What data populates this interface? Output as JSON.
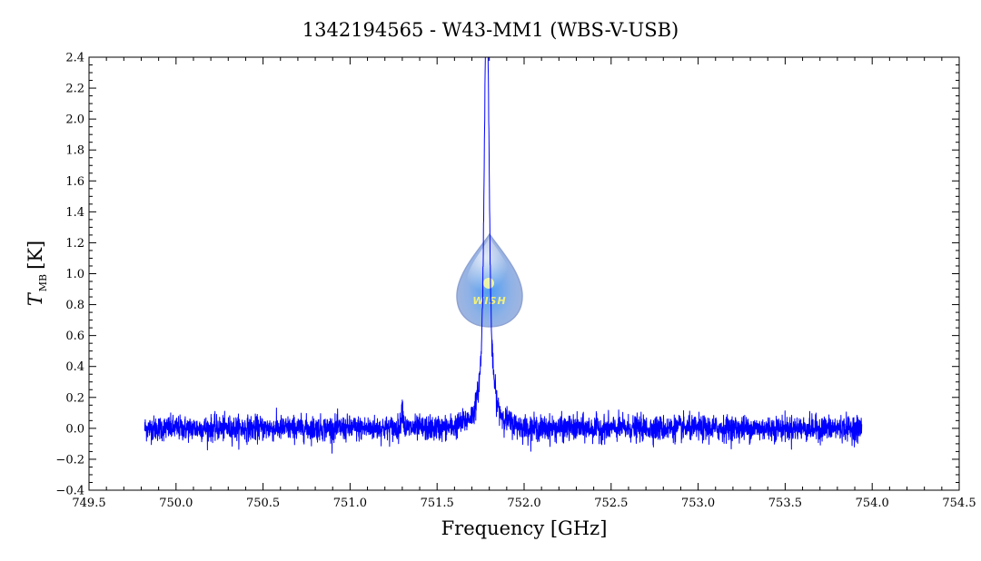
{
  "chart_data": {
    "type": "line",
    "title": "1342194565 - W43-MM1 (WBS-V-USB)",
    "xlabel": "Frequency [GHz]",
    "ylabel": {
      "symbol": "T",
      "subscript": "MB",
      "unit": "[K]"
    },
    "xlim": [
      749.5,
      754.5
    ],
    "ylim": [
      -0.4,
      2.4
    ],
    "x_ticks": [
      749.5,
      750.0,
      750.5,
      751.0,
      751.5,
      752.0,
      752.5,
      753.0,
      753.5,
      754.0,
      754.5
    ],
    "x_tick_labels": [
      "749.5",
      "750.0",
      "750.5",
      "751.0",
      "751.5",
      "752.0",
      "752.5",
      "753.0",
      "753.5",
      "754.0",
      "754.5"
    ],
    "y_ticks": [
      -0.4,
      -0.2,
      0.0,
      0.2,
      0.4,
      0.6,
      0.8,
      1.0,
      1.2,
      1.4,
      1.6,
      1.8,
      2.0,
      2.2,
      2.4
    ],
    "y_tick_labels": [
      "−0.4",
      "−0.2",
      "0.0",
      "0.2",
      "0.4",
      "0.6",
      "0.8",
      "1.0",
      "1.2",
      "1.4",
      "1.6",
      "1.8",
      "2.0",
      "2.2",
      "2.4"
    ],
    "grid": false,
    "series": [
      {
        "color": "#0000ff",
        "x_range": [
          749.82,
          753.94
        ],
        "noise_rms": 0.04,
        "features": [
          {
            "center": 751.785,
            "peak": 2.22,
            "width": 0.012
          },
          {
            "center": 751.785,
            "peak": 0.55,
            "width": 0.03
          },
          {
            "center": 751.785,
            "peak": 0.12,
            "width": 0.09
          },
          {
            "center": 751.3,
            "peak": 0.14,
            "width": 0.006
          }
        ]
      }
    ],
    "watermark": {
      "text": "WISH",
      "icon": "droplet-logo-icon"
    }
  }
}
